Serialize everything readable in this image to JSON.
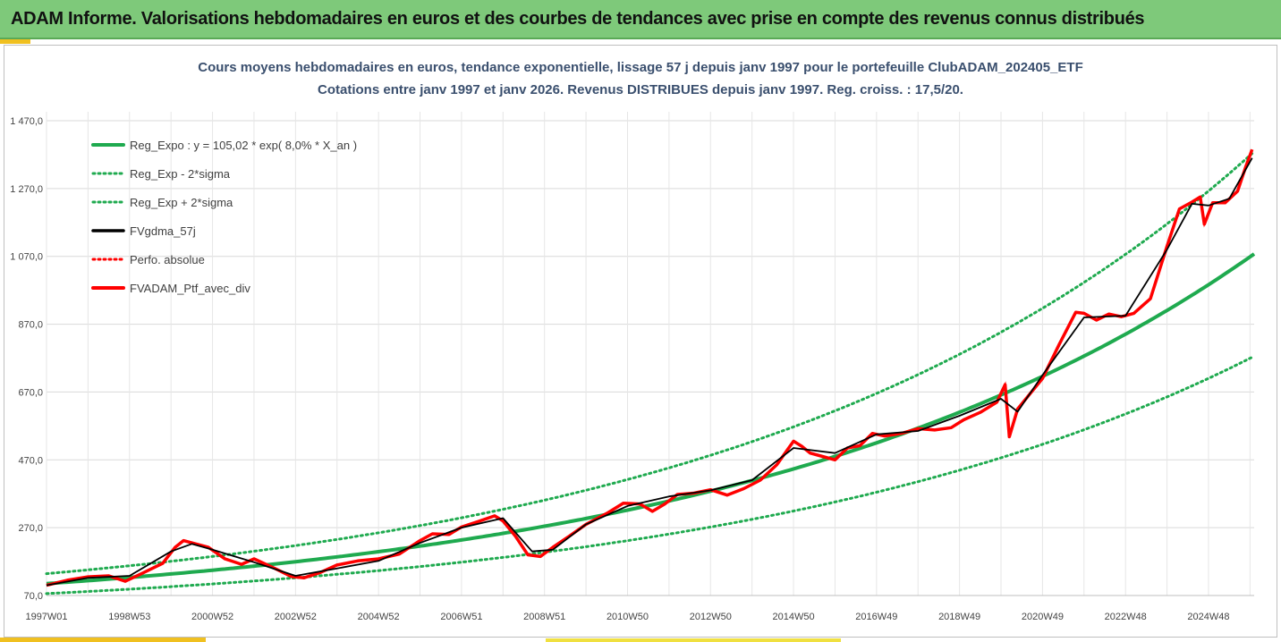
{
  "banner": {
    "title": "ADAM Informe. Valorisations hebdomadaires en euros et des courbes de tendances avec prise en compte des revenus connus distribués"
  },
  "colors": {
    "banner_bg": "#7ec97a",
    "reg_expo": "#1faa4f",
    "reg_sigma": "#1faa4f",
    "fvgdma": "#000000",
    "perfo": "#ff0000",
    "fvadam": "#ff0000",
    "title_text": "#3a4f6e"
  },
  "chart_data": {
    "type": "line",
    "title_line1": "Cours moyens hebdomadaires  en euros, tendance exponentielle, lissage 57 j depuis janv 1997 pour le portefeuille ClubADAM_202405_ETF",
    "title_line2": "Cotations entre janv 1997 et janv 2026. Revenus DISTRIBUES depuis janv 1997. Reg. croiss. : 17,5/20.",
    "xlabel": "",
    "ylabel": "",
    "x_range": [
      1997.0,
      2026.1
    ],
    "ylim": [
      70,
      1470
    ],
    "y_ticks": [
      "70,0",
      "270,0",
      "470,0",
      "670,0",
      "870,0",
      "1 070,0",
      "1 270,0",
      "1 470,0"
    ],
    "y_tick_values": [
      70,
      270,
      470,
      670,
      870,
      1070,
      1270,
      1470
    ],
    "x_tick_labels": [
      "1997W01",
      "1998W53",
      "2000W52",
      "2002W52",
      "2004W52",
      "2006W51",
      "2008W51",
      "2010W50",
      "2012W50",
      "2014W50",
      "2016W49",
      "2018W49",
      "2020W49",
      "2022W48",
      "2024W48"
    ],
    "x_tick_values": [
      1997.0,
      1999.0,
      2001.0,
      2003.0,
      2005.0,
      2007.0,
      2009.0,
      2011.0,
      2013.0,
      2015.0,
      2017.0,
      2019.0,
      2021.0,
      2023.0,
      2025.0
    ],
    "grid": true,
    "legend_position": "top-left",
    "regression": {
      "a": 105.02,
      "rate": 0.08,
      "sigma_factor": 0.28,
      "formula": "Reg_Expo : y = 105,02 * exp( 8,0% *  X_an )"
    },
    "legend": [
      {
        "label": "Reg_Expo : y = 105,02 * exp( 8,0% *  X_an )",
        "style": "solid-green"
      },
      {
        "label": "Reg_Exp - 2*sigma",
        "style": "dotted-green"
      },
      {
        "label": "Reg_Exp + 2*sigma",
        "style": "dotted-green"
      },
      {
        "label": "FVgdma_57j",
        "style": "solid-black"
      },
      {
        "label": "Perfo. absolue",
        "style": "dotted-red"
      },
      {
        "label": "FVADAM_Ptf_avec_div",
        "style": "solid-red"
      }
    ],
    "series": [
      {
        "name": "FVADAM_Ptf_avec_div",
        "x": [
          1997.0,
          1997.5,
          1998.0,
          1998.5,
          1998.9,
          1999.3,
          1999.8,
          2000.1,
          2000.3,
          2000.6,
          2000.9,
          2001.3,
          2001.7,
          2002.0,
          2002.5,
          2002.9,
          2003.2,
          2003.6,
          2004.0,
          2004.5,
          2005.0,
          2005.5,
          2006.0,
          2006.3,
          2006.7,
          2007.0,
          2007.4,
          2007.8,
          2008.0,
          2008.3,
          2008.6,
          2008.9,
          2009.2,
          2009.6,
          2010.0,
          2010.5,
          2010.9,
          2011.3,
          2011.6,
          2011.9,
          2012.2,
          2012.6,
          2013.0,
          2013.4,
          2013.8,
          2014.2,
          2014.6,
          2015.0,
          2015.2,
          2015.4,
          2015.7,
          2016.0,
          2016.3,
          2016.6,
          2016.9,
          2017.2,
          2017.6,
          2018.0,
          2018.4,
          2018.8,
          2019.1,
          2019.5,
          2019.9,
          2020.1,
          2020.2,
          2020.4,
          2020.7,
          2021.0,
          2021.4,
          2021.8,
          2022.0,
          2022.3,
          2022.6,
          2022.9,
          2023.2,
          2023.6,
          2024.0,
          2024.3,
          2024.6,
          2024.8,
          2024.9,
          2025.1,
          2025.4,
          2025.7,
          2025.9,
          2026.05
        ],
        "values": [
          100,
          115,
          125,
          128,
          112,
          135,
          165,
          212,
          232,
          222,
          212,
          178,
          162,
          178,
          150,
          126,
          122,
          138,
          160,
          172,
          178,
          192,
          232,
          252,
          250,
          272,
          288,
          305,
          290,
          245,
          190,
          185,
          212,
          245,
          280,
          312,
          342,
          340,
          318,
          340,
          368,
          372,
          382,
          366,
          385,
          410,
          456,
          525,
          510,
          490,
          480,
          470,
          505,
          512,
          548,
          540,
          548,
          562,
          558,
          565,
          588,
          610,
          640,
          692,
          538,
          620,
          665,
          710,
          810,
          905,
          902,
          882,
          900,
          892,
          902,
          945,
          1100,
          1210,
          1230,
          1245,
          1165,
          1228,
          1228,
          1262,
          1335,
          1385
        ]
      },
      {
        "name": "FVgdma_57j",
        "x": [
          1997.0,
          1998.0,
          1999.0,
          2000.0,
          2000.5,
          2001.0,
          2002.0,
          2003.0,
          2004.0,
          2005.0,
          2006.0,
          2007.0,
          2008.0,
          2008.7,
          2009.2,
          2010.0,
          2011.0,
          2012.0,
          2013.0,
          2014.0,
          2015.0,
          2016.0,
          2017.0,
          2018.0,
          2019.0,
          2020.0,
          2020.4,
          2021.0,
          2022.0,
          2023.0,
          2024.0,
          2024.6,
          2025.0,
          2025.5,
          2026.05
        ],
        "values": [
          100,
          122,
          128,
          200,
          222,
          205,
          168,
          128,
          150,
          172,
          225,
          270,
          298,
          200,
          205,
          280,
          334,
          362,
          380,
          410,
          505,
          490,
          545,
          555,
          600,
          650,
          612,
          720,
          890,
          895,
          1090,
          1225,
          1220,
          1240,
          1360
        ]
      }
    ]
  }
}
